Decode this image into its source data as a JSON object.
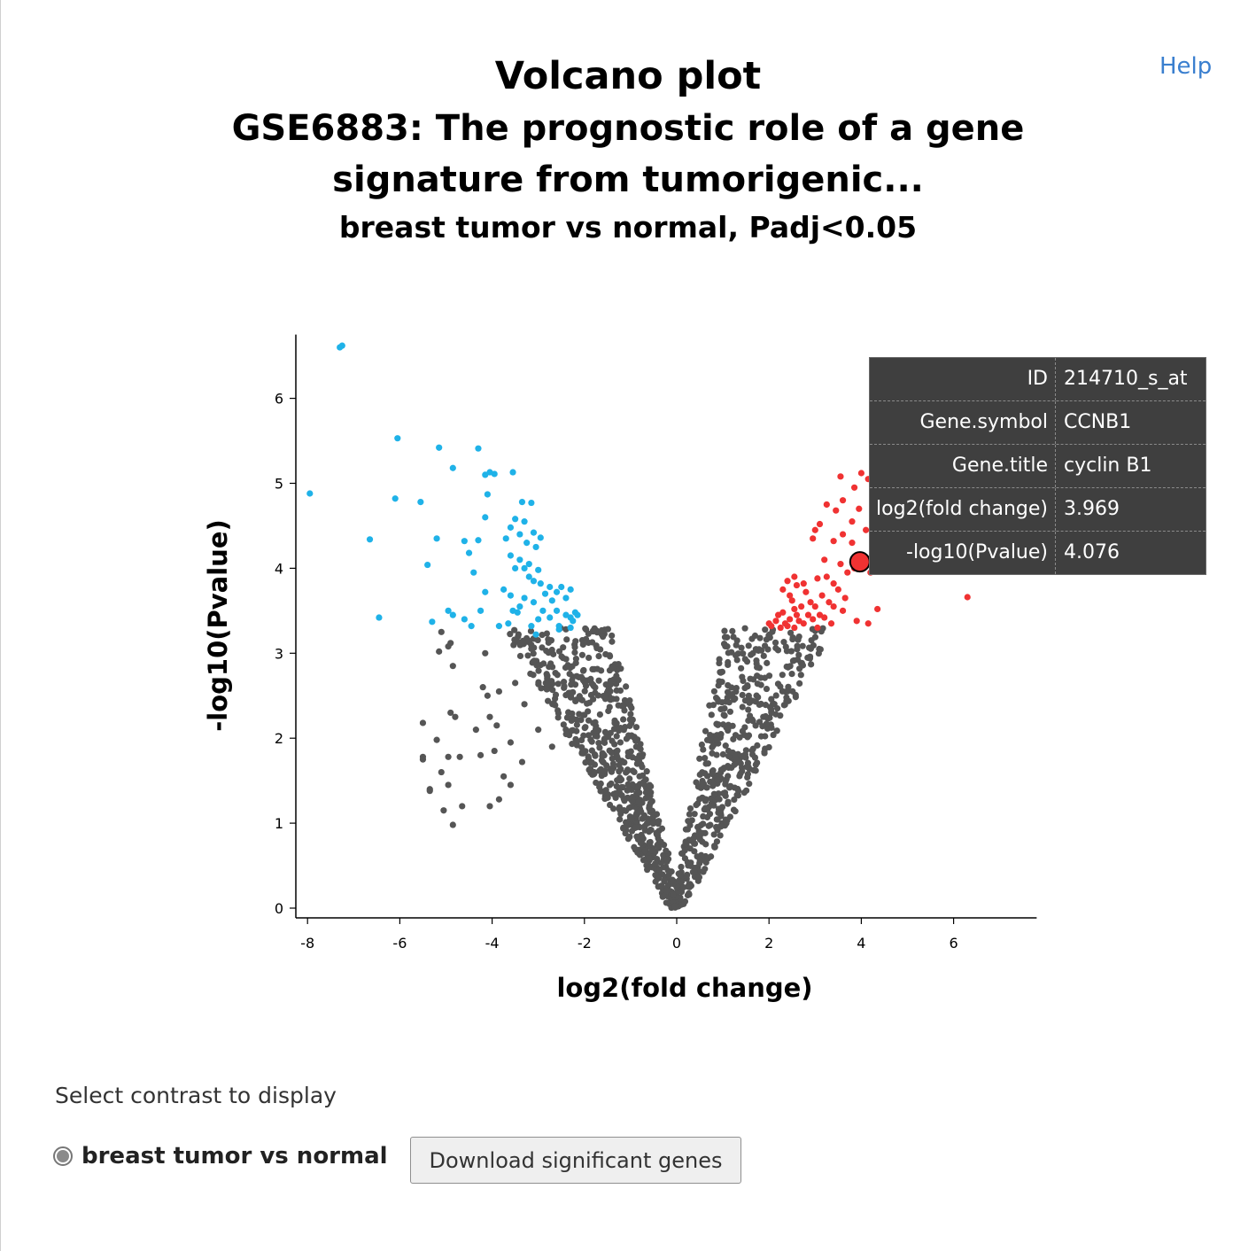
{
  "header": {
    "title_line1": "Volcano plot",
    "title_line2": "GSE6883: The prognostic role of a gene",
    "title_line3": "signature from tumorigenic...",
    "subtitle": "breast tumor vs normal, Padj<0.05",
    "help_label": "Help"
  },
  "chart_data": {
    "type": "scatter",
    "title": "Volcano plot",
    "xlabel": "log2(fold change)",
    "ylabel": "-log10(Pvalue)",
    "xlim": [
      -8.3,
      7.8
    ],
    "ylim": [
      -0.12,
      6.75
    ],
    "xticks": [
      -8,
      -6,
      -4,
      -2,
      0,
      2,
      4,
      6
    ],
    "yticks": [
      0,
      1,
      2,
      3,
      4,
      5,
      6
    ],
    "grid": false,
    "colors": {
      "down": "#1fb2e8",
      "up": "#f03232",
      "ns": "#555555"
    },
    "series": [
      {
        "group": "down",
        "points": [
          [
            -7.3,
            6.6
          ],
          [
            -7.25,
            6.62
          ],
          [
            -7.95,
            4.88
          ],
          [
            -6.05,
            5.53
          ],
          [
            -5.15,
            5.42
          ],
          [
            -4.3,
            5.41
          ],
          [
            -4.85,
            5.18
          ],
          [
            -4.05,
            5.13
          ],
          [
            -3.95,
            5.11
          ],
          [
            -3.55,
            5.13
          ],
          [
            -4.15,
            5.1
          ],
          [
            -6.1,
            4.82
          ],
          [
            -5.55,
            4.78
          ],
          [
            -4.1,
            4.87
          ],
          [
            -3.35,
            4.78
          ],
          [
            -3.15,
            4.77
          ],
          [
            -4.15,
            4.6
          ],
          [
            -3.5,
            4.58
          ],
          [
            -3.3,
            4.55
          ],
          [
            -3.6,
            4.48
          ],
          [
            -3.1,
            4.42
          ],
          [
            -3.4,
            4.4
          ],
          [
            -2.95,
            4.36
          ],
          [
            -6.65,
            4.34
          ],
          [
            -5.2,
            4.35
          ],
          [
            -4.6,
            4.32
          ],
          [
            -4.3,
            4.33
          ],
          [
            -3.7,
            4.35
          ],
          [
            -3.25,
            4.3
          ],
          [
            -3.05,
            4.25
          ],
          [
            -4.5,
            4.18
          ],
          [
            -3.6,
            4.15
          ],
          [
            -3.4,
            4.1
          ],
          [
            -3.2,
            4.05
          ],
          [
            -5.4,
            4.04
          ],
          [
            -3.5,
            4.0
          ],
          [
            -3.3,
            4.0
          ],
          [
            -3.0,
            3.98
          ],
          [
            -4.4,
            3.95
          ],
          [
            -3.2,
            3.9
          ],
          [
            -3.1,
            3.85
          ],
          [
            -2.95,
            3.82
          ],
          [
            -2.75,
            3.78
          ],
          [
            -2.5,
            3.78
          ],
          [
            -2.3,
            3.75
          ],
          [
            -2.85,
            3.7
          ],
          [
            -2.6,
            3.72
          ],
          [
            -3.75,
            3.75
          ],
          [
            -3.6,
            3.68
          ],
          [
            -4.15,
            3.72
          ],
          [
            -3.3,
            3.65
          ],
          [
            -2.7,
            3.62
          ],
          [
            -2.4,
            3.65
          ],
          [
            -3.1,
            3.6
          ],
          [
            -3.4,
            3.55
          ],
          [
            -3.55,
            3.5
          ],
          [
            -2.9,
            3.5
          ],
          [
            -2.6,
            3.5
          ],
          [
            -2.2,
            3.48
          ],
          [
            -3.45,
            3.48
          ],
          [
            -2.4,
            3.45
          ],
          [
            -2.15,
            3.45
          ],
          [
            -4.25,
            3.5
          ],
          [
            -4.95,
            3.5
          ],
          [
            -2.3,
            3.42
          ],
          [
            -2.75,
            3.42
          ],
          [
            -4.85,
            3.45
          ],
          [
            -3.0,
            3.4
          ],
          [
            -4.6,
            3.4
          ],
          [
            -2.25,
            3.38
          ],
          [
            -6.45,
            3.42
          ],
          [
            -3.65,
            3.35
          ],
          [
            -5.3,
            3.37
          ],
          [
            -4.45,
            3.32
          ],
          [
            -3.85,
            3.32
          ],
          [
            -3.15,
            3.32
          ],
          [
            -2.55,
            3.32
          ],
          [
            -2.3,
            3.3
          ],
          [
            -2.55,
            3.28
          ],
          [
            -3.05,
            3.22
          ]
        ]
      },
      {
        "group": "up",
        "points": [
          [
            4.0,
            5.12
          ],
          [
            3.55,
            5.08
          ],
          [
            4.5,
            5.1
          ],
          [
            4.15,
            5.05
          ],
          [
            3.85,
            4.95
          ],
          [
            3.6,
            4.8
          ],
          [
            4.25,
            4.75
          ],
          [
            3.25,
            4.75
          ],
          [
            3.95,
            4.7
          ],
          [
            3.45,
            4.68
          ],
          [
            4.4,
            4.6
          ],
          [
            3.8,
            4.55
          ],
          [
            3.1,
            4.52
          ],
          [
            4.1,
            4.45
          ],
          [
            3.6,
            4.4
          ],
          [
            3.0,
            4.45
          ],
          [
            2.95,
            4.35
          ],
          [
            3.4,
            4.32
          ],
          [
            3.8,
            4.3
          ],
          [
            4.3,
            4.3
          ],
          [
            4.6,
            4.15
          ],
          [
            3.2,
            4.1
          ],
          [
            3.55,
            4.05
          ],
          [
            3.85,
            4.0
          ],
          [
            4.1,
            4.05
          ],
          [
            3.7,
            3.95
          ],
          [
            3.25,
            3.9
          ],
          [
            3.05,
            3.88
          ],
          [
            2.55,
            3.9
          ],
          [
            4.35,
            4.1
          ],
          [
            3.969,
            4.076
          ],
          [
            4.55,
            4.2
          ],
          [
            4.2,
            3.95
          ],
          [
            3.4,
            3.82
          ],
          [
            2.75,
            3.82
          ],
          [
            2.4,
            3.85
          ],
          [
            2.6,
            3.8
          ],
          [
            2.3,
            3.75
          ],
          [
            3.5,
            3.75
          ],
          [
            2.8,
            3.72
          ],
          [
            2.45,
            3.68
          ],
          [
            3.15,
            3.68
          ],
          [
            3.65,
            3.65
          ],
          [
            2.9,
            3.6
          ],
          [
            2.5,
            3.62
          ],
          [
            3.3,
            3.6
          ],
          [
            2.7,
            3.55
          ],
          [
            2.55,
            3.52
          ],
          [
            3.0,
            3.55
          ],
          [
            3.4,
            3.55
          ],
          [
            2.6,
            3.45
          ],
          [
            2.3,
            3.48
          ],
          [
            2.2,
            3.45
          ],
          [
            3.1,
            3.45
          ],
          [
            2.85,
            3.45
          ],
          [
            2.45,
            3.4
          ],
          [
            3.2,
            3.42
          ],
          [
            2.95,
            3.4
          ],
          [
            2.65,
            3.38
          ],
          [
            2.35,
            3.35
          ],
          [
            2.15,
            3.38
          ],
          [
            3.35,
            3.35
          ],
          [
            3.6,
            3.5
          ],
          [
            3.9,
            3.38
          ],
          [
            4.15,
            3.35
          ],
          [
            2.05,
            3.32
          ],
          [
            2.75,
            3.35
          ],
          [
            6.3,
            3.66
          ],
          [
            4.35,
            3.52
          ],
          [
            2.55,
            3.3
          ],
          [
            3.05,
            3.3
          ],
          [
            2.25,
            3.3
          ],
          [
            2.4,
            3.32
          ],
          [
            2.0,
            3.35
          ]
        ]
      },
      {
        "group": "ns",
        "points": [
          [
            -5.5,
            1.78
          ],
          [
            -5.5,
            1.75
          ],
          [
            -4.9,
            2.3
          ],
          [
            -4.8,
            2.25
          ],
          [
            -5.2,
            1.98
          ],
          [
            -5.35,
            1.4
          ],
          [
            -5.35,
            1.38
          ],
          [
            -5.1,
            1.6
          ],
          [
            -4.7,
            1.78
          ],
          [
            -4.95,
            1.78
          ],
          [
            -5.5,
            2.18
          ],
          [
            -4.65,
            1.2
          ],
          [
            -4.95,
            1.45
          ],
          [
            -4.85,
            0.98
          ],
          [
            -5.05,
            1.15
          ],
          [
            -4.85,
            2.85
          ],
          [
            -4.95,
            3.08
          ],
          [
            -5.15,
            3.02
          ],
          [
            -5.1,
            3.25
          ],
          [
            -4.9,
            3.12
          ],
          [
            -4.2,
            2.6
          ],
          [
            -4.1,
            2.5
          ],
          [
            -4.35,
            2.1
          ],
          [
            -4.05,
            2.25
          ],
          [
            -4.25,
            1.8
          ],
          [
            -3.95,
            1.85
          ],
          [
            -4.05,
            1.2
          ],
          [
            -3.85,
            1.28
          ],
          [
            -3.75,
            1.55
          ],
          [
            -3.6,
            1.45
          ],
          [
            -4.15,
            3.0
          ],
          [
            -3.85,
            2.55
          ],
          [
            -3.5,
            2.65
          ],
          [
            -3.3,
            2.4
          ],
          [
            -3.0,
            2.1
          ],
          [
            -2.7,
            1.9
          ],
          [
            -3.6,
            1.95
          ],
          [
            -3.9,
            2.15
          ],
          [
            -3.35,
            1.72
          ]
        ]
      }
    ],
    "highlight": {
      "x": 3.969,
      "y": 4.076
    }
  },
  "tooltip": {
    "rows": [
      {
        "key": "ID",
        "value": "214710_s_at"
      },
      {
        "key": "Gene.symbol",
        "value": "CCNB1"
      },
      {
        "key": "Gene.title",
        "value": "cyclin B1"
      },
      {
        "key": "log2(fold change)",
        "value": "3.969"
      },
      {
        "key": "-log10(Pvalue)",
        "value": "4.076"
      }
    ]
  },
  "controls": {
    "contrast_label": "Select contrast to display",
    "contrast_option": "breast tumor vs normal",
    "download_label": "Download significant genes"
  }
}
